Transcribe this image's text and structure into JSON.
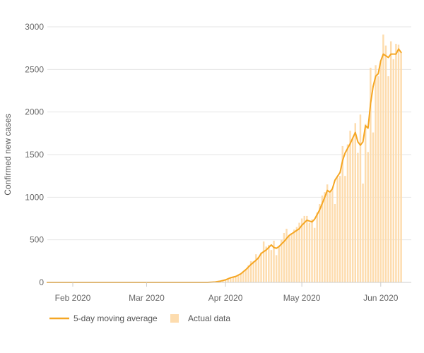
{
  "colors": {
    "line": "#f5a623",
    "bars": "#fddcae",
    "grid": "#e6e6e6",
    "axis": "#cccccc"
  },
  "chart_data": {
    "type": "bar",
    "ylabel": "Confirmed new cases",
    "ylim": [
      0,
      3000
    ],
    "y_ticks": [
      0,
      500,
      1000,
      1500,
      2000,
      2500,
      3000
    ],
    "x_ticks": [
      {
        "date": "2020-02-01",
        "label": "Feb 2020"
      },
      {
        "date": "2020-03-01",
        "label": "Mar 2020"
      },
      {
        "date": "2020-04-01",
        "label": "Apr 2020"
      },
      {
        "date": "2020-05-01",
        "label": "May 2020"
      },
      {
        "date": "2020-06-01",
        "label": "Jun 2020"
      }
    ],
    "x_range": [
      "2020-01-22",
      "2020-06-13"
    ],
    "grid": "horizontal",
    "legend": {
      "position": "bottom-left",
      "line_label": "5-day moving average",
      "bar_label": "Actual data"
    },
    "series": [
      {
        "name": "Actual data",
        "kind": "bar",
        "points": [
          [
            "2020-03-28",
            5
          ],
          [
            "2020-03-29",
            8
          ],
          [
            "2020-03-30",
            12
          ],
          [
            "2020-03-31",
            18
          ],
          [
            "2020-04-01",
            25
          ],
          [
            "2020-04-02",
            35
          ],
          [
            "2020-04-03",
            50
          ],
          [
            "2020-04-04",
            65
          ],
          [
            "2020-04-05",
            60
          ],
          [
            "2020-04-06",
            80
          ],
          [
            "2020-04-07",
            100
          ],
          [
            "2020-04-08",
            120
          ],
          [
            "2020-04-09",
            150
          ],
          [
            "2020-04-10",
            200
          ],
          [
            "2020-04-11",
            250
          ],
          [
            "2020-04-12",
            250
          ],
          [
            "2020-04-13",
            330
          ],
          [
            "2020-04-14",
            300
          ],
          [
            "2020-04-15",
            350
          ],
          [
            "2020-04-16",
            480
          ],
          [
            "2020-04-17",
            420
          ],
          [
            "2020-04-18",
            440
          ],
          [
            "2020-04-19",
            380
          ],
          [
            "2020-04-20",
            490
          ],
          [
            "2020-04-21",
            320
          ],
          [
            "2020-04-22",
            430
          ],
          [
            "2020-04-23",
            500
          ],
          [
            "2020-04-24",
            580
          ],
          [
            "2020-04-25",
            630
          ],
          [
            "2020-04-26",
            550
          ],
          [
            "2020-04-27",
            580
          ],
          [
            "2020-04-28",
            620
          ],
          [
            "2020-04-29",
            650
          ],
          [
            "2020-04-30",
            700
          ],
          [
            "2020-05-01",
            750
          ],
          [
            "2020-05-02",
            780
          ],
          [
            "2020-05-03",
            780
          ],
          [
            "2020-05-04",
            700
          ],
          [
            "2020-05-05",
            740
          ],
          [
            "2020-05-06",
            640
          ],
          [
            "2020-05-07",
            820
          ],
          [
            "2020-05-08",
            920
          ],
          [
            "2020-05-09",
            1020
          ],
          [
            "2020-05-10",
            1060
          ],
          [
            "2020-05-11",
            1150
          ],
          [
            "2020-05-12",
            1050
          ],
          [
            "2020-05-13",
            1100
          ],
          [
            "2020-05-14",
            920
          ],
          [
            "2020-05-15",
            1230
          ],
          [
            "2020-05-16",
            1250
          ],
          [
            "2020-05-17",
            1600
          ],
          [
            "2020-05-18",
            1250
          ],
          [
            "2020-05-19",
            1620
          ],
          [
            "2020-05-20",
            1780
          ],
          [
            "2020-05-21",
            1700
          ],
          [
            "2020-05-22",
            1870
          ],
          [
            "2020-05-23",
            1520
          ],
          [
            "2020-05-24",
            1970
          ],
          [
            "2020-05-25",
            1160
          ],
          [
            "2020-05-26",
            1860
          ],
          [
            "2020-05-27",
            1530
          ],
          [
            "2020-05-28",
            2520
          ],
          [
            "2020-05-29",
            1760
          ],
          [
            "2020-05-30",
            2550
          ],
          [
            "2020-05-31",
            2420
          ],
          [
            "2020-06-01",
            2600
          ],
          [
            "2020-06-02",
            2910
          ],
          [
            "2020-06-03",
            2780
          ],
          [
            "2020-06-04",
            2420
          ],
          [
            "2020-06-05",
            2830
          ],
          [
            "2020-06-06",
            2620
          ],
          [
            "2020-06-07",
            2800
          ],
          [
            "2020-06-08",
            2790
          ],
          [
            "2020-06-09",
            2700
          ]
        ]
      },
      {
        "name": "5-day moving average",
        "kind": "line",
        "points": [
          [
            "2020-01-22",
            0
          ],
          [
            "2020-03-25",
            0
          ],
          [
            "2020-03-28",
            5
          ],
          [
            "2020-03-30",
            15
          ],
          [
            "2020-04-01",
            30
          ],
          [
            "2020-04-03",
            55
          ],
          [
            "2020-04-05",
            70
          ],
          [
            "2020-04-07",
            100
          ],
          [
            "2020-04-09",
            150
          ],
          [
            "2020-04-11",
            210
          ],
          [
            "2020-04-13",
            260
          ],
          [
            "2020-04-14",
            290
          ],
          [
            "2020-04-15",
            340
          ],
          [
            "2020-04-17",
            380
          ],
          [
            "2020-04-19",
            440
          ],
          [
            "2020-04-20",
            410
          ],
          [
            "2020-04-21",
            400
          ],
          [
            "2020-04-22",
            420
          ],
          [
            "2020-04-24",
            480
          ],
          [
            "2020-04-26",
            550
          ],
          [
            "2020-04-28",
            590
          ],
          [
            "2020-04-30",
            630
          ],
          [
            "2020-05-01",
            670
          ],
          [
            "2020-05-03",
            730
          ],
          [
            "2020-05-05",
            710
          ],
          [
            "2020-05-06",
            740
          ],
          [
            "2020-05-08",
            850
          ],
          [
            "2020-05-10",
            1000
          ],
          [
            "2020-05-11",
            1080
          ],
          [
            "2020-05-12",
            1060
          ],
          [
            "2020-05-13",
            1100
          ],
          [
            "2020-05-14",
            1200
          ],
          [
            "2020-05-16",
            1290
          ],
          [
            "2020-05-17",
            1430
          ],
          [
            "2020-05-18",
            1520
          ],
          [
            "2020-05-20",
            1630
          ],
          [
            "2020-05-22",
            1760
          ],
          [
            "2020-05-23",
            1650
          ],
          [
            "2020-05-24",
            1610
          ],
          [
            "2020-05-25",
            1650
          ],
          [
            "2020-05-26",
            1840
          ],
          [
            "2020-05-27",
            1810
          ],
          [
            "2020-05-28",
            2100
          ],
          [
            "2020-05-29",
            2300
          ],
          [
            "2020-05-30",
            2420
          ],
          [
            "2020-05-31",
            2450
          ],
          [
            "2020-06-01",
            2600
          ],
          [
            "2020-06-02",
            2680
          ],
          [
            "2020-06-04",
            2640
          ],
          [
            "2020-06-05",
            2680
          ],
          [
            "2020-06-07",
            2680
          ],
          [
            "2020-06-08",
            2740
          ],
          [
            "2020-06-09",
            2700
          ]
        ]
      }
    ]
  }
}
